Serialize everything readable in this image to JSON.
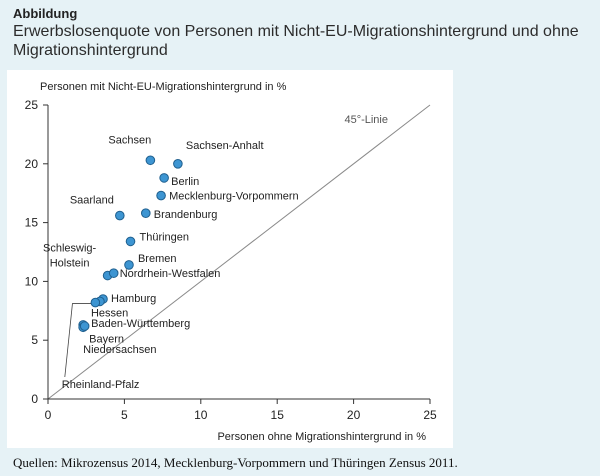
{
  "header": {
    "label": "Abbildung",
    "title": "Erwerbslosenquote von Personen mit Nicht-EU-Migrationshintergrund und ohne Migrationshintergrund"
  },
  "source": "Quellen: Mikrozensus 2014, Mecklenburg-Vorpommern und Thüringen Zensus 2011.",
  "colors": {
    "point_fill": "#3d95d2",
    "point_stroke": "#1f5f8e",
    "diagonal": "#8a8a8a",
    "axis": "#333333"
  },
  "chart_data": {
    "type": "scatter",
    "xlabel": "Personen ohne Migrationshintergrund in %",
    "ylabel": "Personen mit Nicht-EU-Migrationshintergrund in %",
    "xlim": [
      0,
      25
    ],
    "ylim": [
      0,
      25
    ],
    "xticks": [
      0,
      5,
      10,
      15,
      20,
      25
    ],
    "yticks": [
      0,
      5,
      10,
      15,
      20,
      25
    ],
    "grid": false,
    "reference_line": {
      "label": "45°-Linie",
      "from": [
        0,
        0
      ],
      "to": [
        25,
        25
      ]
    },
    "points": [
      {
        "label": "Sachsen",
        "x": 6.7,
        "y": 20.3
      },
      {
        "label": "Sachsen-Anhalt",
        "x": 8.5,
        "y": 20.0
      },
      {
        "label": "Berlin",
        "x": 7.6,
        "y": 18.8
      },
      {
        "label": "Mecklenburg-Vorpommern",
        "x": 7.4,
        "y": 17.3
      },
      {
        "label": "Saarland",
        "x": 4.7,
        "y": 15.6
      },
      {
        "label": "Brandenburg",
        "x": 6.4,
        "y": 15.8
      },
      {
        "label": "Thüringen",
        "x": 5.4,
        "y": 13.4
      },
      {
        "label": "Bremen",
        "x": 5.3,
        "y": 11.4
      },
      {
        "label": "Schleswig-Holstein",
        "x": 3.9,
        "y": 10.5
      },
      {
        "label": "Nordrhein-Westfalen",
        "x": 4.3,
        "y": 10.7
      },
      {
        "label": "Hamburg",
        "x": 3.6,
        "y": 8.5
      },
      {
        "label": "Hessen",
        "x": 3.4,
        "y": 8.3
      },
      {
        "label": "Rheinland-Pfalz",
        "x": 3.1,
        "y": 8.2
      },
      {
        "label": "Baden-Württemberg",
        "x": 2.3,
        "y": 6.3
      },
      {
        "label": "Bayern",
        "x": 2.3,
        "y": 6.1
      },
      {
        "label": "Niedersachsen",
        "x": 2.4,
        "y": 6.2
      }
    ]
  }
}
